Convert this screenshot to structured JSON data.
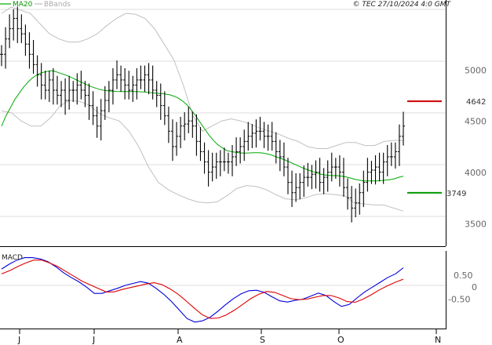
{
  "header": {
    "copyright": "© TEC 27/10/2024 4:0 GMT"
  },
  "legend": [
    {
      "label": "MA20",
      "color": "#009900"
    },
    {
      "label": "BBands",
      "color": "#aaaaaa"
    }
  ],
  "macd_label": "MACD",
  "colors": {
    "candle": "#000000",
    "ma20": "#00aa00",
    "bbands": "#c0c0c0",
    "resistance": "#cc0000",
    "support": "#009900",
    "macd_line": "#0000dd",
    "macd_signal": "#dd0000"
  },
  "levels": {
    "resistance": {
      "label": "4642",
      "value": 46.42
    },
    "support": {
      "label": "3749",
      "value": 37.49
    }
  },
  "chart_data": [
    {
      "type": "candlestick",
      "title": "",
      "y_ticks": [
        {
          "label": "3500",
          "value": 35
        },
        {
          "label": "4000",
          "value": 40
        },
        {
          "label": "4500",
          "value": 45
        },
        {
          "label": "5000",
          "value": 50
        }
      ],
      "ylim": [
        32.2,
        56.3
      ],
      "x_ticks": [
        "J",
        "J",
        "A",
        "S",
        "O",
        "N"
      ],
      "price_closes": [
        51,
        52.5,
        53.5,
        54.5,
        53.5,
        53,
        52,
        51,
        50,
        49,
        48,
        47.5,
        48.5,
        47.5,
        47,
        47.5,
        46.5,
        47.5,
        47.5,
        48,
        47.5,
        47,
        46,
        45,
        44,
        45.5,
        46.5,
        47.5,
        48.5,
        49,
        48.5,
        48,
        47.5,
        48,
        48.5,
        48.5,
        49,
        48.5,
        47.5,
        47,
        46,
        45,
        43.5,
        42,
        43,
        44,
        44.2,
        44.5,
        44,
        42.5,
        41.5,
        40.5,
        39.5,
        40,
        40.5,
        40.5,
        40.5,
        40.5,
        41,
        41.5,
        42,
        42.5,
        43,
        43.3,
        43.5,
        43.5,
        43,
        43,
        42.5,
        41.5,
        41,
        40,
        38.5,
        37.5,
        38,
        38.5,
        39,
        39,
        39.3,
        39.5,
        38.5,
        39,
        39.5,
        40,
        40,
        39.5,
        38,
        37,
        36,
        36.5,
        37.5,
        38.5,
        39.5,
        39.7,
        40,
        39.5,
        40.5,
        41,
        41,
        41.5,
        43,
        44
      ],
      "ma20": [
        44,
        45,
        45.8,
        46.6,
        47.2,
        47.8,
        48.3,
        48.7,
        49,
        49.2,
        49.3,
        49.4,
        49.35,
        49.2,
        49.05,
        48.9,
        48.7,
        48.5,
        48.3,
        48.1,
        47.9,
        47.75,
        47.6,
        47.5,
        47.45,
        47.4,
        47.38,
        47.37,
        47.37,
        47.37,
        47.37,
        47.36,
        47.33,
        47.3,
        47.25,
        47.2,
        47.18,
        47.13,
        47.06,
        46.92,
        46.73,
        46.44,
        46.07,
        45.56,
        44.97,
        44.34,
        43.72,
        43.11,
        42.59,
        42.17,
        41.87,
        41.61,
        41.51,
        41.44,
        41.38,
        41.36,
        41.37,
        41.4,
        41.4,
        41.38,
        41.3,
        41.2,
        41.03,
        40.88,
        40.72,
        40.55,
        40.35,
        40.15,
        39.95,
        39.78,
        39.63,
        39.48,
        39.33,
        39.24,
        39.19,
        39.16,
        39.16,
        39.12,
        39.04,
        38.93,
        38.81,
        38.72,
        38.64,
        38.64,
        38.64,
        38.64,
        38.68,
        38.73,
        38.77,
        38.86,
        39.01,
        39.1
      ],
      "bb_upper": [
        55,
        55.6,
        55.3,
        55,
        54,
        53,
        52.5,
        52.2,
        52.2,
        52.5,
        53,
        53.8,
        54.5,
        55,
        54.9,
        54.5,
        53.5,
        52,
        50.5,
        48,
        45,
        43.5,
        44,
        44.5,
        44.7,
        44.5,
        44.2,
        43.8,
        43.5,
        43.2,
        42.8,
        42.5,
        42,
        41.8,
        41.8,
        42.1,
        42.4,
        42.4,
        42.1,
        42.1,
        42.5,
        42.6,
        42.6
      ],
      "bb_lower": [
        45.5,
        45.3,
        44.5,
        44,
        44,
        44.8,
        46,
        46.5,
        46.4,
        46,
        45.2,
        44.8,
        44.5,
        43.5,
        42,
        40,
        38.5,
        37.8,
        37.3,
        36.9,
        36.6,
        36.5,
        36.6,
        37.2,
        37.9,
        38.2,
        38.1,
        37.8,
        37.3,
        36.9,
        36.8,
        37,
        37.3,
        37.4,
        37.3,
        37.2,
        36.5,
        36.4,
        36.3,
        36.3,
        36,
        35.7
      ],
      "series": [
        {
          "name": "MA20",
          "values_key": "ma20"
        },
        {
          "name": "BBands",
          "values_key": "bb_upper/bb_lower"
        }
      ]
    },
    {
      "type": "line",
      "title": "MACD",
      "y_ticks": [
        {
          "label": "0.50",
          "value": 0.5
        },
        {
          "label": "0",
          "value": 0
        },
        {
          "label": "-0.50",
          "value": -0.5
        }
      ],
      "ylim": [
        -1.75,
        1.5
      ],
      "series": [
        {
          "name": "MACD",
          "values": [
            0.75,
            0.95,
            1.12,
            1.22,
            1.22,
            1.17,
            1.05,
            0.85,
            0.6,
            0.4,
            0.22,
            0.0,
            -0.26,
            -0.26,
            -0.15,
            -0.05,
            0.07,
            0.15,
            0.23,
            0.16,
            -0.05,
            -0.3,
            -0.6,
            -0.95,
            -1.3,
            -1.45,
            -1.4,
            -1.25,
            -1.0,
            -0.73,
            -0.48,
            -0.28,
            -0.15,
            -0.13,
            -0.22,
            -0.4,
            -0.57,
            -0.62,
            -0.55,
            -0.5,
            -0.38,
            -0.25,
            -0.35,
            -0.6,
            -0.8,
            -0.72,
            -0.45,
            -0.2,
            0.0,
            0.2,
            0.4,
            0.55,
            0.8
          ]
        },
        {
          "name": "Signal",
          "values": [
            0.55,
            0.68,
            0.85,
            1.0,
            1.12,
            1.12,
            1.0,
            0.85,
            0.65,
            0.45,
            0.25,
            0.1,
            -0.05,
            -0.2,
            -0.2,
            -0.1,
            -0.02,
            0.05,
            0.13,
            0.18,
            0.1,
            -0.08,
            -0.3,
            -0.58,
            -0.88,
            -1.15,
            -1.3,
            -1.28,
            -1.15,
            -0.95,
            -0.72,
            -0.48,
            -0.3,
            -0.18,
            -0.22,
            -0.35,
            -0.48,
            -0.52,
            -0.5,
            -0.42,
            -0.35,
            -0.35,
            -0.45,
            -0.6,
            -0.63,
            -0.5,
            -0.32,
            -0.12,
            0.05,
            0.2,
            0.33
          ]
        }
      ]
    }
  ]
}
